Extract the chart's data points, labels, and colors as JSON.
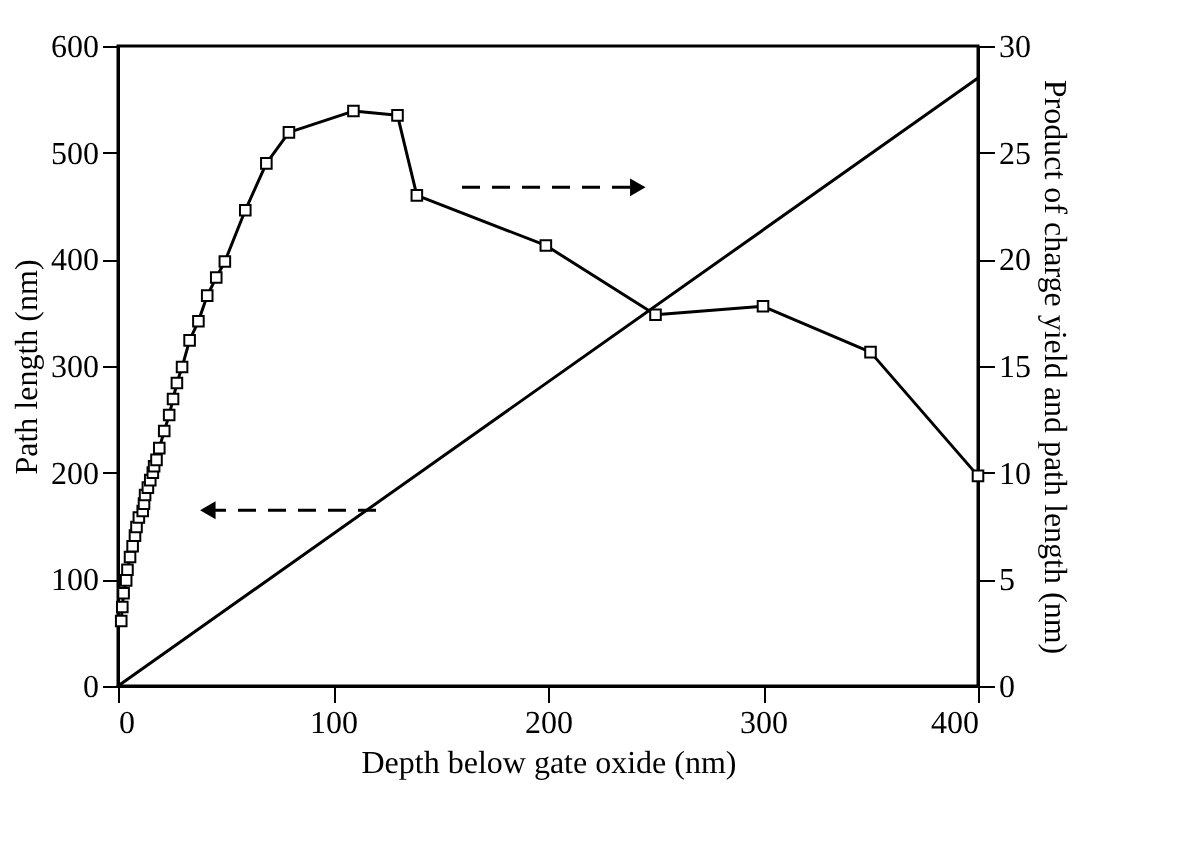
{
  "chart_data": {
    "type": "line",
    "xlabel": "Depth below gate oxide (nm)",
    "ylabel": "Path length (nm)",
    "y2label": "Product of charge yield and path length (nm)",
    "xlim": [
      0,
      400
    ],
    "xticks": [
      0,
      100,
      200,
      300,
      400
    ],
    "ylim": [
      0,
      600
    ],
    "yticks": [
      0,
      100,
      200,
      300,
      400,
      500,
      600
    ],
    "y2lim": [
      0,
      30
    ],
    "y2ticks": [
      0,
      5,
      10,
      15,
      20,
      25,
      30
    ],
    "grid": false,
    "series": [
      {
        "marker": "square",
        "color": "#000000",
        "x": [
          1.5,
          2.0,
          2.6,
          3.8,
          4.4,
          5.6,
          6.8,
          7.9,
          8.6,
          9.7,
          11.5,
          12.1,
          12.6,
          13.9,
          15,
          16.2,
          16.8,
          17.9,
          19.2,
          21.5,
          23.8,
          25.6,
          27.4,
          29.8,
          33.3,
          37.4,
          41.5,
          45.7,
          49.7,
          59.2,
          69,
          79.5,
          109.5,
          130,
          139,
          199,
          250,
          300,
          350,
          400
        ],
        "values": [
          61,
          74,
          87,
          99,
          109,
          121,
          131,
          141,
          149,
          158,
          164,
          171,
          179,
          186,
          193,
          200,
          206,
          212,
          223,
          239,
          254,
          269,
          284,
          299,
          324,
          342,
          366,
          383,
          398,
          446,
          490,
          519,
          539,
          535,
          460,
          413,
          348,
          356,
          313,
          197
        ]
      },
      {
        "marker": "none",
        "axis": "y2",
        "color": "#000000",
        "x": [
          0,
          400
        ],
        "values": [
          0,
          28.5
        ]
      }
    ]
  }
}
